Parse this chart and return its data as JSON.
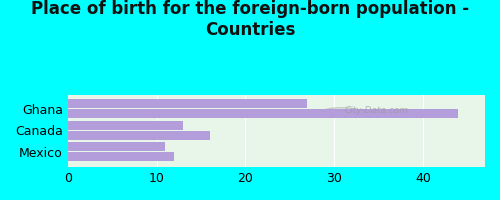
{
  "title": "Place of birth for the foreign-born population -\nCountries",
  "categories": [
    "Mexico",
    "Canada",
    "Ghana"
  ],
  "bar1_values": [
    12.0,
    16.0,
    44.0
  ],
  "bar2_values": [
    11.0,
    13.0,
    27.0
  ],
  "bar_color": "#b39ddb",
  "background_color": "#00ffff",
  "plot_bg_color": "#e8f5e9",
  "xlim": [
    0,
    47
  ],
  "xticks": [
    0,
    10,
    20,
    30,
    40
  ],
  "bar_height": 0.28,
  "title_fontsize": 12,
  "tick_fontsize": 9,
  "label_fontsize": 9,
  "watermark": "City-Data.com"
}
